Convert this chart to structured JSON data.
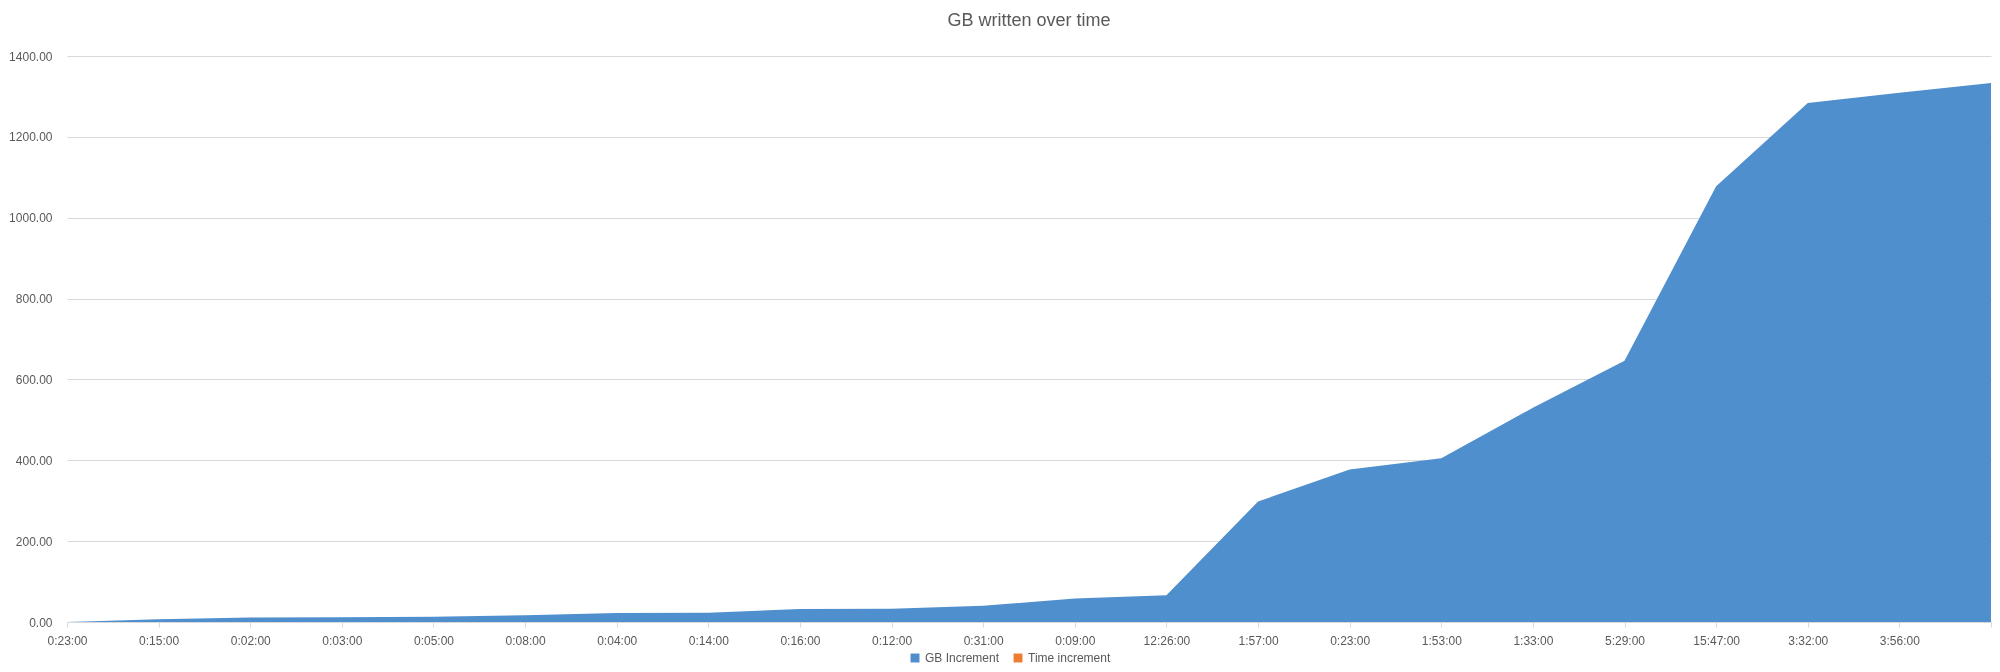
{
  "chart_data": {
    "type": "area",
    "title": "GB written over time",
    "categories": [
      "0:23:00",
      "0:15:00",
      "0:02:00",
      "0:03:00",
      "0:05:00",
      "0:08:00",
      "0:04:00",
      "0:14:00",
      "0:16:00",
      "0:12:00",
      "0:31:00",
      "0:09:00",
      "12:26:00",
      "1:57:00",
      "0:23:00",
      "1:53:00",
      "1:33:00",
      "5:29:00",
      "15:47:00",
      "3:32:00",
      "3:56:00",
      null
    ],
    "series": [
      {
        "name": "GB Increment",
        "color": "#4f8fcd",
        "values": [
          0,
          7,
          11,
          12,
          13,
          17,
          22,
          23,
          32,
          33,
          40,
          58,
          66,
          298,
          377,
          405,
          530,
          646,
          1078,
          1284,
          1309,
          1333
        ]
      },
      {
        "name": "Time increment",
        "color": "#ed7d31",
        "values": [
          null,
          null,
          null,
          null,
          null,
          null,
          null,
          null,
          null,
          null,
          null,
          null,
          null,
          null,
          null,
          null,
          null,
          null,
          null,
          null,
          null,
          null
        ]
      }
    ],
    "ylim": [
      0,
      1400
    ],
    "yticks": [
      {
        "value": 0,
        "label": "0.00"
      },
      {
        "value": 200,
        "label": "200.00"
      },
      {
        "value": 400,
        "label": "400.00"
      },
      {
        "value": 600,
        "label": "600.00"
      },
      {
        "value": 800,
        "label": "800.00"
      },
      {
        "value": 1000,
        "label": "1000.00"
      },
      {
        "value": 1200,
        "label": "1200.00"
      },
      {
        "value": 1400,
        "label": "1400.00"
      }
    ],
    "grid": "y",
    "legend": "bottom"
  }
}
